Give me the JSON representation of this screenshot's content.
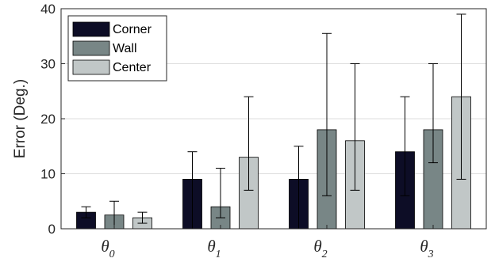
{
  "chart_data": {
    "type": "bar",
    "categories": [
      {
        "base": "θ",
        "sub": "0"
      },
      {
        "base": "θ",
        "sub": "1"
      },
      {
        "base": "θ",
        "sub": "2"
      },
      {
        "base": "θ",
        "sub": "3"
      }
    ],
    "ylabel": "Error (Deg.)",
    "ylim": [
      0,
      40
    ],
    "yticks": [
      "0",
      "10",
      "20",
      "30",
      "40"
    ],
    "grid": true,
    "legend_position": "top-left",
    "series": [
      {
        "name": "Corner",
        "color": "#0d0d26",
        "values": [
          3,
          9,
          9,
          14
        ],
        "err_low": [
          2,
          0,
          0,
          6
        ],
        "err_high": [
          4,
          14,
          15,
          24
        ]
      },
      {
        "name": "Wall",
        "color": "#788686",
        "values": [
          2.5,
          4,
          18,
          18
        ],
        "err_low": [
          0,
          2,
          6,
          12
        ],
        "err_high": [
          5,
          11,
          35.5,
          30
        ]
      },
      {
        "name": "Center",
        "color": "#c1c7c7",
        "values": [
          2,
          13,
          16,
          24
        ],
        "err_low": [
          1,
          7,
          7,
          9
        ],
        "err_high": [
          3,
          24,
          30,
          39
        ]
      }
    ]
  }
}
